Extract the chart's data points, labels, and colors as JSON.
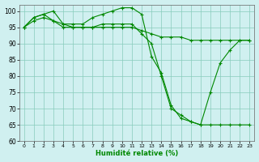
{
  "xlabel": "Humidité relative (%)",
  "background_color": "#d0f0f0",
  "grid_color": "#88ccbb",
  "line_color": "#008800",
  "marker": "+",
  "xlim": [
    -0.5,
    23.5
  ],
  "ylim": [
    60,
    102
  ],
  "yticks": [
    60,
    65,
    70,
    75,
    80,
    85,
    90,
    95,
    100
  ],
  "xticks": [
    0,
    1,
    2,
    3,
    4,
    5,
    6,
    7,
    8,
    9,
    10,
    11,
    12,
    13,
    14,
    15,
    16,
    17,
    18,
    19,
    20,
    21,
    22,
    23
  ],
  "series": [
    [
      95,
      98,
      99,
      100,
      96,
      96,
      96,
      98,
      99,
      100,
      101,
      101,
      99,
      86,
      81,
      71,
      67,
      66,
      65,
      75,
      84,
      88,
      91,
      91
    ],
    [
      95,
      98,
      99,
      97,
      96,
      95,
      95,
      95,
      95,
      95,
      95,
      95,
      94,
      93,
      92,
      92,
      92,
      91,
      91,
      91,
      91,
      91,
      91,
      91
    ],
    [
      95,
      97,
      98,
      97,
      95,
      95,
      95,
      95,
      96,
      96,
      96,
      96,
      93,
      90,
      80,
      70,
      68,
      66,
      65,
      65,
      65,
      65,
      65,
      65
    ]
  ]
}
